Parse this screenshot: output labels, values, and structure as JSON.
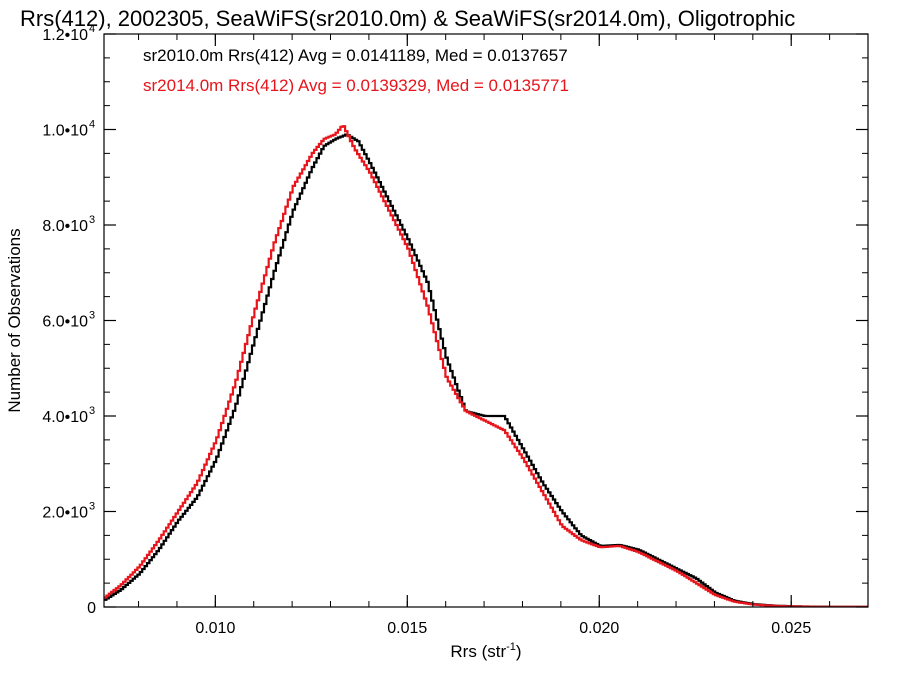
{
  "chart_data": {
    "type": "line",
    "title": "Rrs(412), 2002305, SeaWiFS(sr2010.0m) & SeaWiFS(sr2014.0m), Oligotrophic",
    "xlabel": "Rrs (str",
    "xlabel_sup": "-1",
    "xlabel_end": ")",
    "ylabel": "Number of Observations",
    "xlim": [
      0.0071,
      0.027
    ],
    "ylim": [
      0,
      12000
    ],
    "x_ticks": [
      {
        "value": 0.01,
        "label": "0.010"
      },
      {
        "value": 0.015,
        "label": "0.015"
      },
      {
        "value": 0.02,
        "label": "0.020"
      },
      {
        "value": 0.025,
        "label": "0.025"
      }
    ],
    "y_ticks": [
      {
        "value": 0,
        "label": "0",
        "sup": ""
      },
      {
        "value": 2000,
        "label": "2.0•10",
        "sup": "3"
      },
      {
        "value": 4000,
        "label": "4.0•10",
        "sup": "3"
      },
      {
        "value": 6000,
        "label": "6.0•10",
        "sup": "3"
      },
      {
        "value": 8000,
        "label": "8.0•10",
        "sup": "3"
      },
      {
        "value": 10000,
        "label": "1.0•10",
        "sup": "4"
      },
      {
        "value": 12000,
        "label": "1.2•10",
        "sup": "4"
      }
    ],
    "legend": [
      {
        "text": "sr2010.0m Rrs(412) Avg = 0.0141189, Med = 0.0137657",
        "color": "#000000"
      },
      {
        "text": "sr2014.0m Rrs(412) Avg = 0.0139329, Med = 0.0135771",
        "color": "#e8141b"
      }
    ],
    "legend_position": "top-left",
    "grid": false,
    "series": [
      {
        "color": "#000000",
        "x": [
          0.0071,
          0.0075,
          0.008,
          0.0085,
          0.009,
          0.0095,
          0.01,
          0.0105,
          0.011,
          0.0115,
          0.012,
          0.0125,
          0.0128,
          0.0131,
          0.0134,
          0.0137,
          0.014,
          0.0145,
          0.015,
          0.0155,
          0.016,
          0.0165,
          0.017,
          0.0175,
          0.018,
          0.0185,
          0.019,
          0.0195,
          0.02,
          0.0205,
          0.021,
          0.0215,
          0.022,
          0.0225,
          0.023,
          0.0235,
          0.024,
          0.0245,
          0.025,
          0.0255,
          0.026,
          0.0265,
          0.027
        ],
        "y": [
          150,
          350,
          700,
          1200,
          1800,
          2300,
          3100,
          4200,
          5600,
          7000,
          8300,
          9200,
          9650,
          9800,
          9900,
          9750,
          9300,
          8500,
          7700,
          6800,
          5200,
          4100,
          4000,
          4000,
          3300,
          2600,
          2000,
          1500,
          1280,
          1300,
          1200,
          1000,
          800,
          600,
          300,
          130,
          60,
          30,
          15,
          8,
          5,
          3,
          2
        ]
      },
      {
        "color": "#e8141b",
        "x": [
          0.0071,
          0.0075,
          0.008,
          0.0085,
          0.009,
          0.0095,
          0.01,
          0.0105,
          0.011,
          0.0115,
          0.012,
          0.0125,
          0.0128,
          0.0131,
          0.0133,
          0.0136,
          0.014,
          0.0145,
          0.015,
          0.0155,
          0.016,
          0.0165,
          0.017,
          0.0175,
          0.018,
          0.0185,
          0.019,
          0.0195,
          0.02,
          0.0205,
          0.021,
          0.0215,
          0.022,
          0.0225,
          0.023,
          0.0235,
          0.024,
          0.0245,
          0.025,
          0.0255,
          0.026,
          0.0265,
          0.027
        ],
        "y": [
          200,
          450,
          850,
          1400,
          2000,
          2600,
          3500,
          4700,
          6200,
          7600,
          8800,
          9500,
          9800,
          9900,
          10100,
          9600,
          9100,
          8300,
          7500,
          6300,
          4800,
          4100,
          3900,
          3700,
          3100,
          2400,
          1700,
          1400,
          1250,
          1280,
          1150,
          950,
          750,
          500,
          250,
          110,
          50,
          25,
          12,
          6,
          4,
          2,
          1
        ]
      }
    ]
  }
}
